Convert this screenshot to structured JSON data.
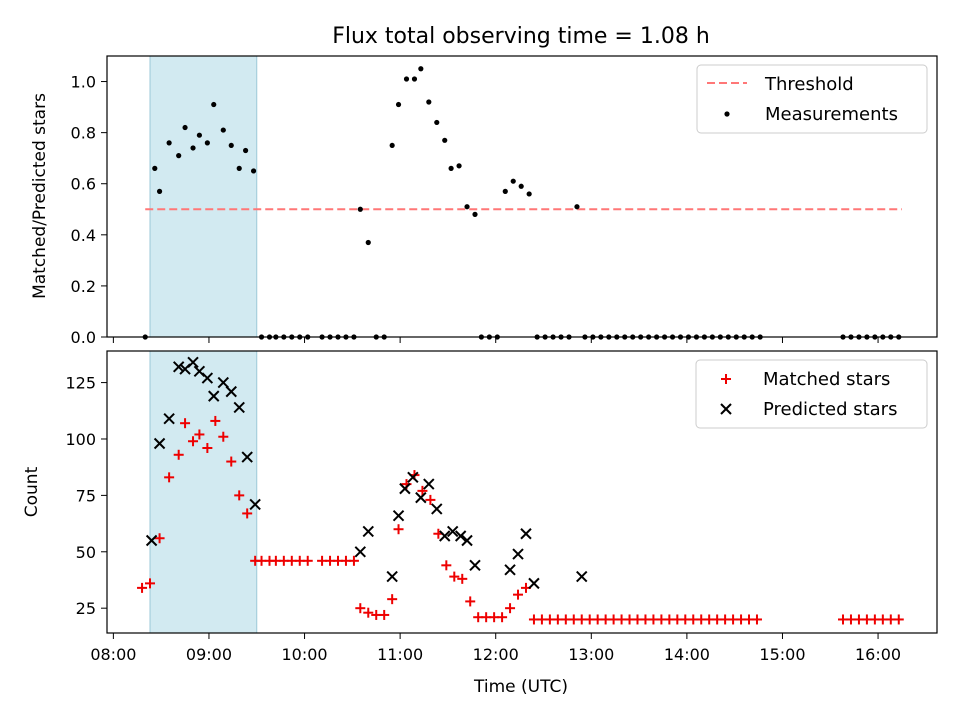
{
  "title": "Flux total observing time = 1.08 h",
  "colors": {
    "threshold": "#ff7777",
    "measurement": "#000000",
    "matched": "#ee0000",
    "predicted": "#000000",
    "span": "#add8e6"
  },
  "chart_data": [
    {
      "type": "scatter",
      "ylabel": "Matched/Predicted stars",
      "xlabel": "",
      "ylim": [
        0,
        1.1
      ],
      "yticks": [
        "0.0",
        "0.2",
        "0.4",
        "0.6",
        "0.8",
        "1.0"
      ],
      "highlight_span": [
        "08:23",
        "09:30"
      ],
      "legend_position": "upper-right",
      "threshold": {
        "name": "Threshold",
        "style": "dashed",
        "x": [
          "08:20",
          "16:15"
        ],
        "y": 0.5
      },
      "series": [
        {
          "name": "Measurements",
          "points": [
            [
              "08:20",
              0.0
            ],
            [
              "08:26",
              0.66
            ],
            [
              "08:29",
              0.57
            ],
            [
              "08:35",
              0.76
            ],
            [
              "08:41",
              0.71
            ],
            [
              "08:45",
              0.82
            ],
            [
              "08:50",
              0.74
            ],
            [
              "08:54",
              0.79
            ],
            [
              "08:59",
              0.76
            ],
            [
              "09:03",
              0.91
            ],
            [
              "09:09",
              0.81
            ],
            [
              "09:14",
              0.75
            ],
            [
              "09:19",
              0.66
            ],
            [
              "09:23",
              0.73
            ],
            [
              "09:28",
              0.65
            ],
            [
              "09:33",
              0.0
            ],
            [
              "09:38",
              0.0
            ],
            [
              "09:42",
              0.0
            ],
            [
              "09:47",
              0.0
            ],
            [
              "09:52",
              0.0
            ],
            [
              "09:57",
              0.0
            ],
            [
              "10:02",
              0.0
            ],
            [
              "10:11",
              0.0
            ],
            [
              "10:16",
              0.0
            ],
            [
              "10:21",
              0.0
            ],
            [
              "10:26",
              0.0
            ],
            [
              "10:31",
              0.0
            ],
            [
              "10:35",
              0.5
            ],
            [
              "10:40",
              0.37
            ],
            [
              "10:45",
              0.0
            ],
            [
              "10:50",
              0.0
            ],
            [
              "10:55",
              0.75
            ],
            [
              "10:59",
              0.91
            ],
            [
              "11:04",
              1.01
            ],
            [
              "11:09",
              1.01
            ],
            [
              "11:13",
              1.05
            ],
            [
              "11:18",
              0.92
            ],
            [
              "11:23",
              0.84
            ],
            [
              "11:28",
              0.77
            ],
            [
              "11:32",
              0.66
            ],
            [
              "11:37",
              0.67
            ],
            [
              "11:42",
              0.51
            ],
            [
              "11:47",
              0.48
            ],
            [
              "11:51",
              0.0
            ],
            [
              "11:56",
              0.0
            ],
            [
              "12:01",
              0.0
            ],
            [
              "12:06",
              0.57
            ],
            [
              "12:11",
              0.61
            ],
            [
              "12:16",
              0.59
            ],
            [
              "12:21",
              0.56
            ],
            [
              "12:26",
              0.0
            ],
            [
              "12:31",
              0.0
            ],
            [
              "12:36",
              0.0
            ],
            [
              "12:41",
              0.0
            ],
            [
              "12:46",
              0.0
            ],
            [
              "12:51",
              0.51
            ],
            [
              "12:56",
              0.0
            ],
            [
              "13:01",
              0.0
            ],
            [
              "13:06",
              0.0
            ],
            [
              "13:11",
              0.0
            ],
            [
              "13:16",
              0.0
            ],
            [
              "13:21",
              0.0
            ],
            [
              "13:26",
              0.0
            ],
            [
              "13:31",
              0.0
            ],
            [
              "13:36",
              0.0
            ],
            [
              "13:41",
              0.0
            ],
            [
              "13:46",
              0.0
            ],
            [
              "13:51",
              0.0
            ],
            [
              "13:56",
              0.0
            ],
            [
              "14:01",
              0.0
            ],
            [
              "14:06",
              0.0
            ],
            [
              "14:11",
              0.0
            ],
            [
              "14:16",
              0.0
            ],
            [
              "14:21",
              0.0
            ],
            [
              "14:26",
              0.0
            ],
            [
              "14:31",
              0.0
            ],
            [
              "14:36",
              0.0
            ],
            [
              "14:41",
              0.0
            ],
            [
              "14:46",
              0.0
            ],
            [
              "15:38",
              0.0
            ],
            [
              "15:43",
              0.0
            ],
            [
              "15:48",
              0.0
            ],
            [
              "15:53",
              0.0
            ],
            [
              "15:58",
              0.0
            ],
            [
              "16:03",
              0.0
            ],
            [
              "16:08",
              0.0
            ],
            [
              "16:13",
              0.0
            ]
          ]
        }
      ]
    },
    {
      "type": "scatter",
      "ylabel": "Count",
      "xlabel": "Time (UTC)",
      "ylim": [
        14,
        139
      ],
      "yticks": [
        "25",
        "50",
        "75",
        "100",
        "125"
      ],
      "xticks": [
        "08:00",
        "09:00",
        "10:00",
        "11:00",
        "12:00",
        "13:00",
        "14:00",
        "15:00",
        "16:00"
      ],
      "xlim": [
        "07:56",
        "16:37"
      ],
      "highlight_span": [
        "08:23",
        "09:30"
      ],
      "legend_position": "upper-right",
      "series": [
        {
          "name": "Matched stars",
          "marker": "+",
          "points": [
            [
              "08:18",
              34
            ],
            [
              "08:23",
              36
            ],
            [
              "08:29",
              56
            ],
            [
              "08:35",
              83
            ],
            [
              "08:41",
              93
            ],
            [
              "08:45",
              107
            ],
            [
              "08:50",
              99
            ],
            [
              "08:54",
              102
            ],
            [
              "08:59",
              96
            ],
            [
              "09:04",
              108
            ],
            [
              "09:09",
              101
            ],
            [
              "09:14",
              90
            ],
            [
              "09:19",
              75
            ],
            [
              "09:24",
              67
            ],
            [
              "09:29",
              46
            ],
            [
              "09:33",
              46
            ],
            [
              "09:38",
              46
            ],
            [
              "09:42",
              46
            ],
            [
              "09:47",
              46
            ],
            [
              "09:52",
              46
            ],
            [
              "09:57",
              46
            ],
            [
              "10:02",
              46
            ],
            [
              "10:11",
              46
            ],
            [
              "10:16",
              46
            ],
            [
              "10:21",
              46
            ],
            [
              "10:26",
              46
            ],
            [
              "10:31",
              46
            ],
            [
              "10:35",
              25
            ],
            [
              "10:40",
              23
            ],
            [
              "10:45",
              22
            ],
            [
              "10:50",
              22
            ],
            [
              "10:55",
              29
            ],
            [
              "10:59",
              60
            ],
            [
              "11:04",
              80
            ],
            [
              "11:09",
              84
            ],
            [
              "11:14",
              77
            ],
            [
              "11:19",
              73
            ],
            [
              "11:24",
              58
            ],
            [
              "11:29",
              44
            ],
            [
              "11:34",
              39
            ],
            [
              "11:39",
              38
            ],
            [
              "11:44",
              28
            ],
            [
              "11:49",
              21
            ],
            [
              "11:54",
              21
            ],
            [
              "11:59",
              21
            ],
            [
              "12:04",
              21
            ],
            [
              "12:09",
              25
            ],
            [
              "12:14",
              31
            ],
            [
              "12:19",
              34
            ],
            [
              "12:24",
              20
            ],
            [
              "12:29",
              20
            ],
            [
              "12:34",
              20
            ],
            [
              "12:39",
              20
            ],
            [
              "12:44",
              20
            ],
            [
              "12:49",
              20
            ],
            [
              "12:54",
              20
            ],
            [
              "12:59",
              20
            ],
            [
              "13:04",
              20
            ],
            [
              "13:09",
              20
            ],
            [
              "13:14",
              20
            ],
            [
              "13:19",
              20
            ],
            [
              "13:24",
              20
            ],
            [
              "13:29",
              20
            ],
            [
              "13:34",
              20
            ],
            [
              "13:39",
              20
            ],
            [
              "13:44",
              20
            ],
            [
              "13:49",
              20
            ],
            [
              "13:54",
              20
            ],
            [
              "13:59",
              20
            ],
            [
              "14:04",
              20
            ],
            [
              "14:09",
              20
            ],
            [
              "14:14",
              20
            ],
            [
              "14:19",
              20
            ],
            [
              "14:24",
              20
            ],
            [
              "14:29",
              20
            ],
            [
              "14:34",
              20
            ],
            [
              "14:39",
              20
            ],
            [
              "14:44",
              20
            ],
            [
              "15:38",
              20
            ],
            [
              "15:43",
              20
            ],
            [
              "15:48",
              20
            ],
            [
              "15:53",
              20
            ],
            [
              "15:58",
              20
            ],
            [
              "16:03",
              20
            ],
            [
              "16:08",
              20
            ],
            [
              "16:13",
              20
            ]
          ]
        },
        {
          "name": "Predicted stars",
          "marker": "x",
          "points": [
            [
              "08:24",
              55
            ],
            [
              "08:29",
              98
            ],
            [
              "08:35",
              109
            ],
            [
              "08:41",
              132
            ],
            [
              "08:45",
              131
            ],
            [
              "08:50",
              134
            ],
            [
              "08:54",
              130
            ],
            [
              "08:59",
              127
            ],
            [
              "09:03",
              119
            ],
            [
              "09:09",
              125
            ],
            [
              "09:14",
              121
            ],
            [
              "09:19",
              114
            ],
            [
              "09:24",
              92
            ],
            [
              "09:29",
              71
            ],
            [
              "10:35",
              50
            ],
            [
              "10:40",
              59
            ],
            [
              "10:55",
              39
            ],
            [
              "10:59",
              66
            ],
            [
              "11:03",
              78
            ],
            [
              "11:08",
              83
            ],
            [
              "11:13",
              74
            ],
            [
              "11:18",
              80
            ],
            [
              "11:23",
              69
            ],
            [
              "11:28",
              57
            ],
            [
              "11:33",
              59
            ],
            [
              "11:38",
              57
            ],
            [
              "11:42",
              55
            ],
            [
              "11:47",
              44
            ],
            [
              "12:09",
              42
            ],
            [
              "12:14",
              49
            ],
            [
              "12:19",
              58
            ],
            [
              "12:24",
              36
            ],
            [
              "12:54",
              39
            ]
          ]
        }
      ]
    }
  ]
}
